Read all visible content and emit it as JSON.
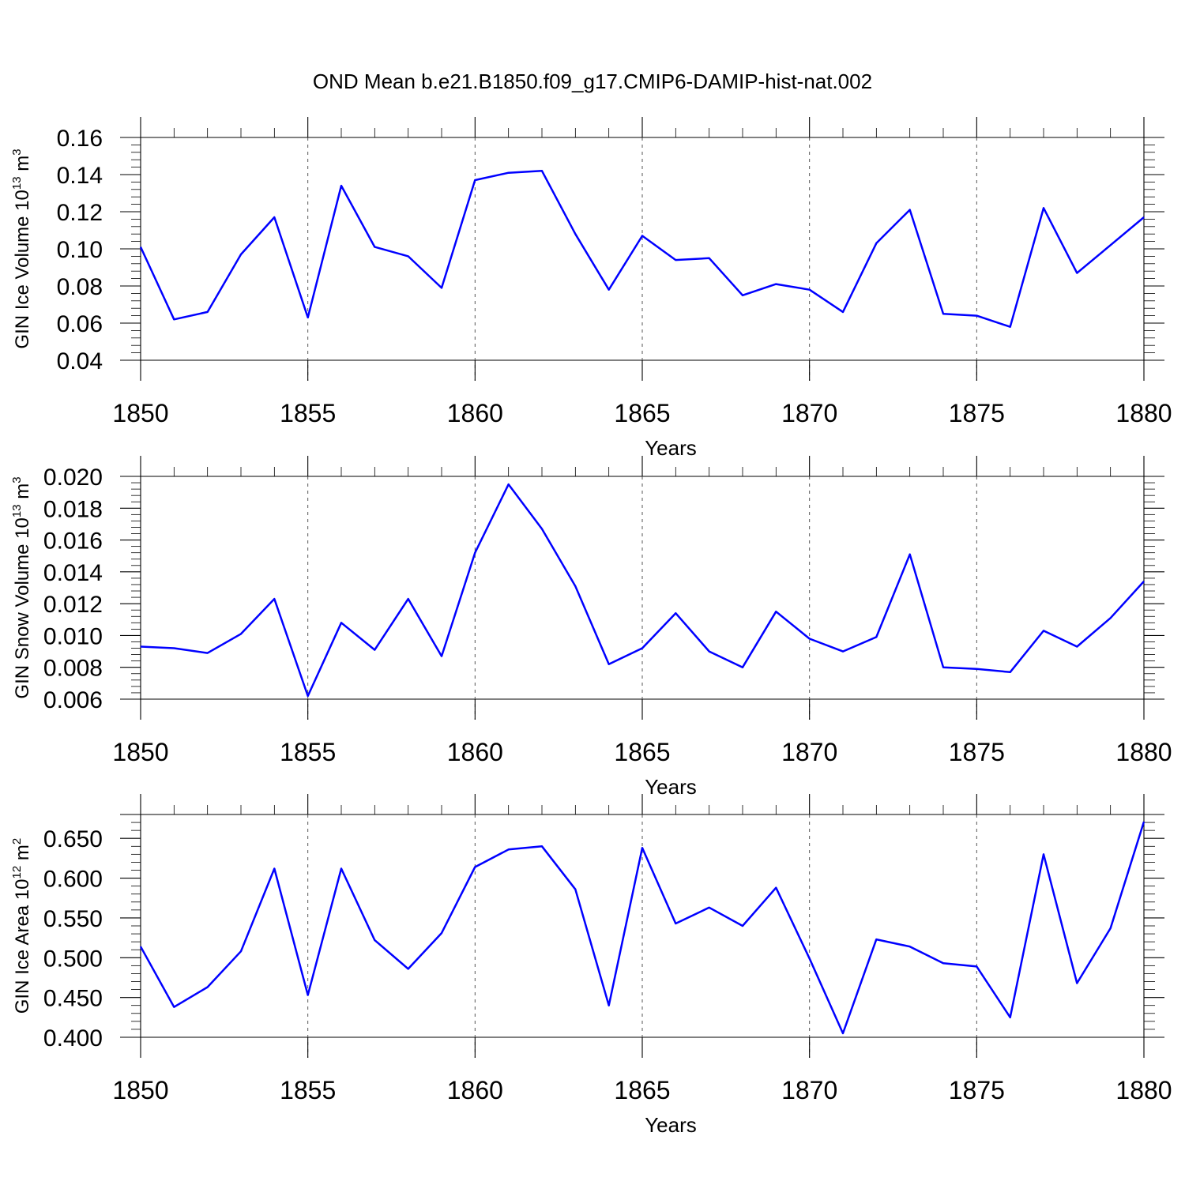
{
  "chart_data": {
    "title": "OND Mean b.e21.B1850.f09_g17.CMIP6-DAMIP-hist-nat.002",
    "panels": [
      {
        "type": "line",
        "ylabel": "GIN Ice Volume",
        "ylabel_unit": "10",
        "ylabel_exp": "13",
        "ylabel_unit2": "m",
        "ylabel_unit2_exp": "3",
        "xlabel": "Years",
        "xlim": [
          1850,
          1880
        ],
        "ylim": [
          0.04,
          0.16
        ],
        "yticks": [
          0.04,
          0.06,
          0.08,
          0.1,
          0.12,
          0.14,
          0.16
        ],
        "ytick_labels": [
          "0.04",
          "0.06",
          "0.08",
          "0.10",
          "0.12",
          "0.14",
          "0.16"
        ],
        "xticks": [
          1850,
          1855,
          1860,
          1865,
          1870,
          1875,
          1880
        ],
        "xtick_labels": [
          "1850",
          "1855",
          "1860",
          "1865",
          "1870",
          "1875",
          "1880"
        ],
        "color": "#0000ff",
        "x": [
          1850,
          1851,
          1852,
          1853,
          1854,
          1855,
          1856,
          1857,
          1858,
          1859,
          1860,
          1861,
          1862,
          1863,
          1864,
          1865,
          1866,
          1867,
          1868,
          1869,
          1870,
          1871,
          1872,
          1873,
          1874,
          1875,
          1876,
          1877,
          1878,
          1879,
          1880
        ],
        "values": [
          0.101,
          0.062,
          0.066,
          0.097,
          0.117,
          0.063,
          0.134,
          0.101,
          0.096,
          0.079,
          0.137,
          0.141,
          0.142,
          0.108,
          0.078,
          0.107,
          0.094,
          0.095,
          0.075,
          0.081,
          0.078,
          0.066,
          0.103,
          0.121,
          0.065,
          0.064,
          0.058,
          0.122,
          0.087,
          0.102,
          0.117
        ]
      },
      {
        "type": "line",
        "ylabel": "GIN Snow Volume",
        "ylabel_unit": "10",
        "ylabel_exp": "13",
        "ylabel_unit2": "m",
        "ylabel_unit2_exp": "3",
        "xlabel": "Years",
        "xlim": [
          1850,
          1880
        ],
        "ylim": [
          0.006,
          0.02
        ],
        "yticks": [
          0.006,
          0.008,
          0.01,
          0.012,
          0.014,
          0.016,
          0.018,
          0.02
        ],
        "ytick_labels": [
          "0.006",
          "0.008",
          "0.010",
          "0.012",
          "0.014",
          "0.016",
          "0.018",
          "0.020"
        ],
        "xticks": [
          1850,
          1855,
          1860,
          1865,
          1870,
          1875,
          1880
        ],
        "xtick_labels": [
          "1850",
          "1855",
          "1860",
          "1865",
          "1870",
          "1875",
          "1880"
        ],
        "color": "#0000ff",
        "x": [
          1850,
          1851,
          1852,
          1853,
          1854,
          1855,
          1856,
          1857,
          1858,
          1859,
          1860,
          1861,
          1862,
          1863,
          1864,
          1865,
          1866,
          1867,
          1868,
          1869,
          1870,
          1871,
          1872,
          1873,
          1874,
          1875,
          1876,
          1877,
          1878,
          1879,
          1880
        ],
        "values": [
          0.0093,
          0.0092,
          0.0089,
          0.0101,
          0.0123,
          0.0062,
          0.0108,
          0.0091,
          0.0123,
          0.0087,
          0.0152,
          0.0195,
          0.0167,
          0.0131,
          0.0082,
          0.0092,
          0.0114,
          0.009,
          0.008,
          0.0115,
          0.0098,
          0.009,
          0.0099,
          0.0151,
          0.008,
          0.0079,
          0.0077,
          0.0103,
          0.0093,
          0.0111,
          0.0134
        ]
      },
      {
        "type": "line",
        "ylabel": "GIN Ice Area",
        "ylabel_unit": "10",
        "ylabel_exp": "12",
        "ylabel_unit2": "m",
        "ylabel_unit2_exp": "2",
        "xlabel": "Years",
        "xlim": [
          1850,
          1880
        ],
        "ylim": [
          0.4,
          0.68
        ],
        "yticks": [
          0.4,
          0.45,
          0.5,
          0.55,
          0.6,
          0.65
        ],
        "ytick_labels": [
          "0.400",
          "0.450",
          "0.500",
          "0.550",
          "0.600",
          "0.650"
        ],
        "xticks": [
          1850,
          1855,
          1860,
          1865,
          1870,
          1875,
          1880
        ],
        "xtick_labels": [
          "1850",
          "1855",
          "1860",
          "1865",
          "1870",
          "1875",
          "1880"
        ],
        "color": "#0000ff",
        "x": [
          1850,
          1851,
          1852,
          1853,
          1854,
          1855,
          1856,
          1857,
          1858,
          1859,
          1860,
          1861,
          1862,
          1863,
          1864,
          1865,
          1866,
          1867,
          1868,
          1869,
          1870,
          1871,
          1872,
          1873,
          1874,
          1875,
          1876,
          1877,
          1878,
          1879,
          1880
        ],
        "values": [
          0.514,
          0.438,
          0.463,
          0.508,
          0.612,
          0.453,
          0.612,
          0.522,
          0.486,
          0.531,
          0.614,
          0.636,
          0.64,
          0.586,
          0.44,
          0.638,
          0.543,
          0.563,
          0.54,
          0.588,
          0.499,
          0.405,
          0.523,
          0.514,
          0.493,
          0.489,
          0.425,
          0.63,
          0.468,
          0.537,
          0.671
        ]
      }
    ]
  }
}
